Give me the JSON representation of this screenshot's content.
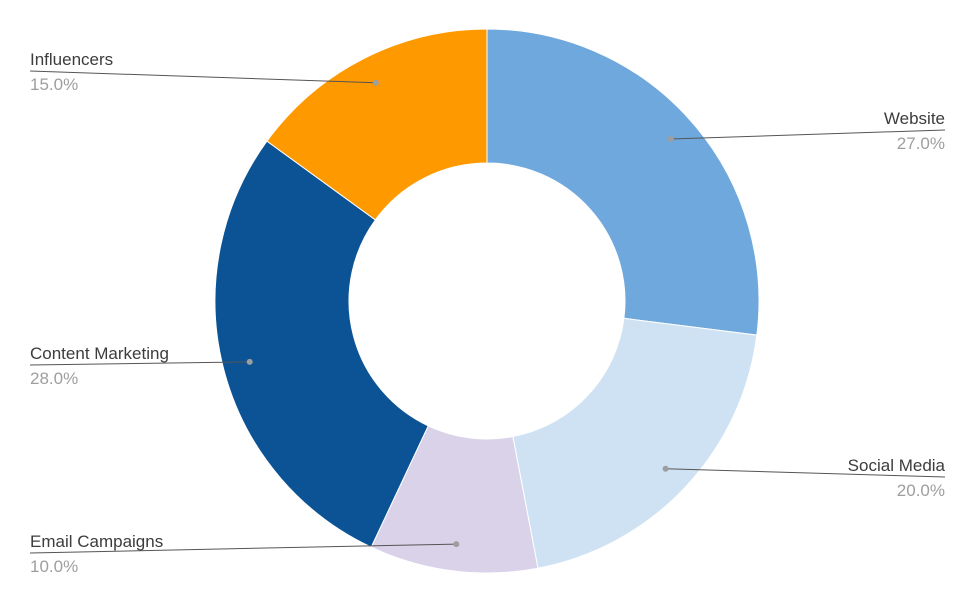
{
  "chart_data": {
    "type": "pie",
    "donut": true,
    "categories": [
      "Website",
      "Social Media",
      "Email Campaigns",
      "Content Marketing",
      "Influencers"
    ],
    "values": [
      27.0,
      20.0,
      10.0,
      28.0,
      15.0
    ],
    "value_labels": [
      "27.0%",
      "20.0%",
      "10.0%",
      "28.0%",
      "15.0%"
    ],
    "colors": [
      "#6fa8dc",
      "#cfe2f3",
      "#d9d2e9",
      "#0b5394",
      "#ff9900"
    ],
    "legend": "none",
    "title": ""
  }
}
